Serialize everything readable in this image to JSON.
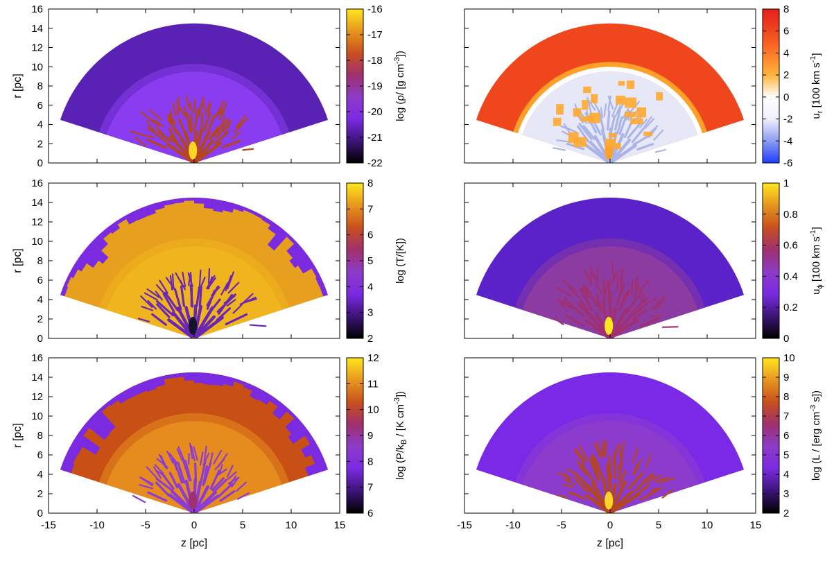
{
  "figure": {
    "description_free": true,
    "shared_x_label": "z [pc]",
    "shared_y_label": "r [pc]"
  },
  "chart_data": [
    {
      "type": "heatmap",
      "id": "density",
      "column": "left",
      "row": 0,
      "xlabel": "",
      "ylabel": "r [pc]",
      "xlim": [
        -15,
        15
      ],
      "ylim": [
        0,
        16
      ],
      "xticks": [
        "-15",
        "-10",
        "-5",
        "0",
        "5",
        "10",
        "15"
      ],
      "yticks": [
        "0",
        "2",
        "4",
        "6",
        "8",
        "10",
        "12",
        "14",
        "16"
      ],
      "show_xtick_labels": false,
      "fan": {
        "outer_radius_pc": 14.5,
        "inner_radius_pc": 9.5,
        "opening_angle_deg": 72
      },
      "colorbar": {
        "label_parts": [
          "log (ρ/ [g cm",
          "-3",
          "])"
        ],
        "min": -22,
        "max": -16,
        "ticks": [
          "-22",
          "-21",
          "-20",
          "-19",
          "-18",
          "-17",
          "-16"
        ],
        "colormap": [
          "#000000",
          "#3c1478",
          "#7a2ae0",
          "#8c3cc8",
          "#a0306e",
          "#c8501e",
          "#e6961e",
          "#ffe61e"
        ]
      },
      "colors": {
        "outer": "#5a22b4",
        "inner": "#8a3cf0",
        "filaments": "#b4461e",
        "core": "#ffd428"
      }
    },
    {
      "type": "heatmap",
      "id": "temperature",
      "column": "left",
      "row": 1,
      "xlabel": "",
      "ylabel": "r [pc]",
      "xlim": [
        -15,
        15
      ],
      "ylim": [
        0,
        16
      ],
      "xticks": [
        "-15",
        "-10",
        "-5",
        "0",
        "5",
        "10",
        "15"
      ],
      "yticks": [
        "0",
        "2",
        "4",
        "6",
        "8",
        "10",
        "12",
        "14",
        "16"
      ],
      "show_xtick_labels": false,
      "fan": {
        "outer_radius_pc": 14.5,
        "inner_radius_pc": 9.5,
        "opening_angle_deg": 72
      },
      "colorbar": {
        "label_parts": [
          "log (T/[K])"
        ],
        "min": 2,
        "max": 8,
        "ticks": [
          "2",
          "3",
          "4",
          "5",
          "6",
          "7",
          "8"
        ],
        "colormap": [
          "#000000",
          "#3c1478",
          "#7a2ae0",
          "#8c3cc8",
          "#a0306e",
          "#c8501e",
          "#e6961e",
          "#ffe61e"
        ]
      },
      "colors": {
        "outer": "#e6a01e",
        "inner": "#f0b41e",
        "filaments": "#6a26b4",
        "core": "#141428",
        "edge": "#7a2ae0"
      }
    },
    {
      "type": "heatmap",
      "id": "pressure",
      "column": "left",
      "row": 2,
      "xlabel": "z [pc]",
      "ylabel": "r [pc]",
      "xlim": [
        -15,
        15
      ],
      "ylim": [
        0,
        16
      ],
      "xticks": [
        "-15",
        "-10",
        "-5",
        "0",
        "5",
        "10",
        "15"
      ],
      "yticks": [
        "0",
        "2",
        "4",
        "6",
        "8",
        "10",
        "12",
        "14",
        "16"
      ],
      "show_xtick_labels": true,
      "fan": {
        "outer_radius_pc": 14.5,
        "inner_radius_pc": 9.5,
        "opening_angle_deg": 72
      },
      "colorbar": {
        "label_parts": [
          "log (P/k",
          "B",
          " / [K cm",
          "-3",
          "])"
        ],
        "min": 6,
        "max": 12,
        "ticks": [
          "6",
          "7",
          "8",
          "9",
          "10",
          "11",
          "12"
        ],
        "colormap": [
          "#000000",
          "#3c1478",
          "#7a2ae0",
          "#8c3cc8",
          "#a0306e",
          "#c8501e",
          "#e6961e",
          "#ffe61e"
        ]
      },
      "colors": {
        "outer": "#c85014",
        "inner": "#e68c1e",
        "filaments": "#8c3cd2",
        "core": "#a0306e",
        "edge": "#7a2ae0"
      }
    },
    {
      "type": "heatmap",
      "id": "radial-velocity",
      "column": "right",
      "row": 0,
      "xlabel": "",
      "ylabel": "",
      "xlim": [
        -15,
        15
      ],
      "ylim": [
        0,
        16
      ],
      "xticks": [
        "-15",
        "-10",
        "-5",
        "0",
        "5",
        "10",
        "15"
      ],
      "yticks": [
        "0",
        "2",
        "4",
        "6",
        "8",
        "10",
        "12",
        "14",
        "16"
      ],
      "show_xtick_labels": false,
      "fan": {
        "outer_radius_pc": 14.5,
        "inner_radius_pc": 9.5,
        "opening_angle_deg": 72
      },
      "colorbar": {
        "label_parts": [
          "u",
          "r",
          " [100 km s",
          "-1",
          "]"
        ],
        "min": -6,
        "max": 8,
        "ticks": [
          "-6",
          "-4",
          "-2",
          "0",
          "2",
          "4",
          "6",
          "8"
        ],
        "colormap": [
          "#1e3cff",
          "#8c9cf0",
          "#f0f0ff",
          "#ffffff",
          "#ffb43c",
          "#ff7828",
          "#f0461e",
          "#e61e1e"
        ]
      },
      "colors": {
        "outer": "#f0461e",
        "inner": "#e6e8f8",
        "filaments": "#aab4e6",
        "core": "#ffa028"
      }
    },
    {
      "type": "heatmap",
      "id": "azimuthal-velocity",
      "column": "right",
      "row": 1,
      "xlabel": "",
      "ylabel": "",
      "xlim": [
        -15,
        15
      ],
      "ylim": [
        0,
        16
      ],
      "xticks": [
        "-15",
        "-10",
        "-5",
        "0",
        "5",
        "10",
        "15"
      ],
      "yticks": [
        "0",
        "2",
        "4",
        "6",
        "8",
        "10",
        "12",
        "14",
        "16"
      ],
      "show_xtick_labels": false,
      "fan": {
        "outer_radius_pc": 14.5,
        "inner_radius_pc": 9.5,
        "opening_angle_deg": 72
      },
      "colorbar": {
        "label_parts": [
          "u",
          "ϕ",
          " [100 km s",
          "-1",
          "]"
        ],
        "min": 0,
        "max": 1,
        "ticks": [
          "0",
          "0.2",
          "0.4",
          "0.6",
          "0.8",
          "1"
        ],
        "colormap": [
          "#000000",
          "#3c1478",
          "#7a2ae0",
          "#8c3cc8",
          "#a0306e",
          "#c8501e",
          "#e6961e",
          "#ffe61e"
        ]
      },
      "colors": {
        "outer": "#5a22c8",
        "inner": "#8c3ca0",
        "filaments": "#a0306e",
        "core": "#ffe61e"
      }
    },
    {
      "type": "heatmap",
      "id": "luminosity",
      "column": "right",
      "row": 2,
      "xlabel": "z [pc]",
      "ylabel": "",
      "xlim": [
        -15,
        15
      ],
      "ylim": [
        0,
        16
      ],
      "xticks": [
        "-15",
        "-10",
        "-5",
        "0",
        "5",
        "10",
        "15"
      ],
      "yticks": [
        "0",
        "2",
        "4",
        "6",
        "8",
        "10",
        "12",
        "14",
        "16"
      ],
      "show_xtick_labels": true,
      "fan": {
        "outer_radius_pc": 14.5,
        "inner_radius_pc": 9.5,
        "opening_angle_deg": 72
      },
      "colorbar": {
        "label_parts": [
          "log (L / [erg cm",
          "-3",
          " s])"
        ],
        "min": 2,
        "max": 10,
        "ticks": [
          "2",
          "3",
          "4",
          "5",
          "6",
          "7",
          "8",
          "9",
          "10"
        ],
        "colormap": [
          "#000000",
          "#3c1478",
          "#7a2ae0",
          "#8c3cc8",
          "#a0306e",
          "#c8501e",
          "#e6961e",
          "#ffe61e"
        ]
      },
      "colors": {
        "outer": "#7a2ae6",
        "inner": "#8c3ccc",
        "filaments": "#b4461e",
        "core": "#ffd428"
      }
    }
  ]
}
